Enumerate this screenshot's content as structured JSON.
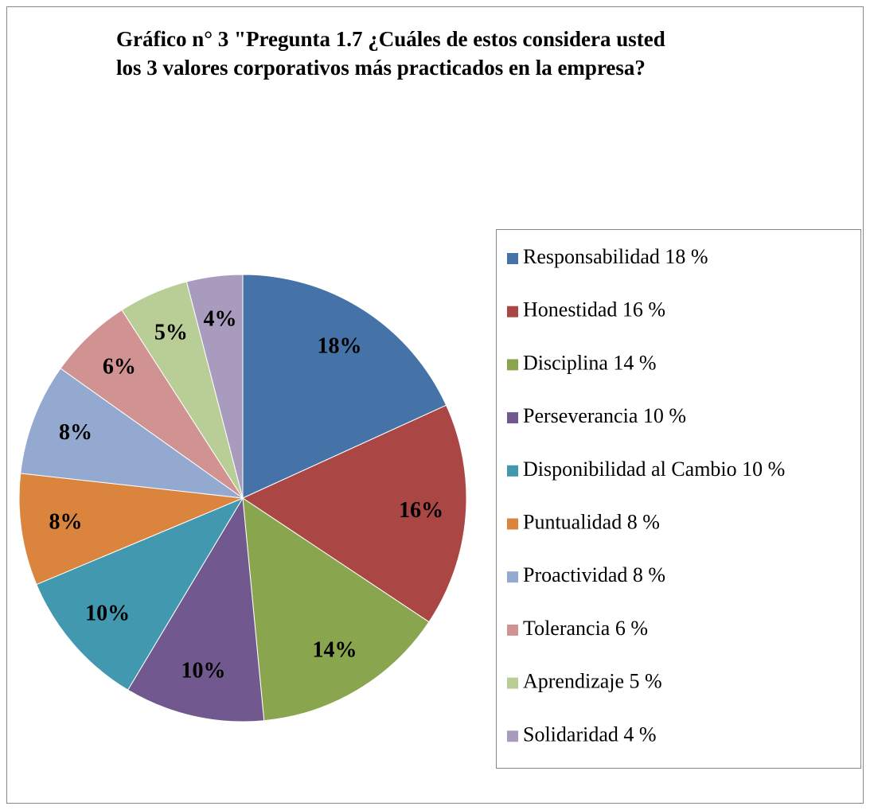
{
  "chart_data": {
    "type": "pie",
    "title": [
      "Gráfico n° 3 \"Pregunta  1.7 ¿Cuáles de estos considera usted",
      "los 3 valores corporativos más practicados en la empresa?"
    ],
    "categories": [
      "Responsabilidad 18 %",
      "Honestidad 16 %",
      "Disciplina 14 %",
      "Perseverancia 10 %",
      "Disponibilidad al Cambio 10 %",
      "Puntualidad 8 %",
      "Proactividad 8 %",
      "Tolerancia 6 %",
      "Aprendizaje 5 %",
      "Solidaridad 4 %"
    ],
    "values": [
      18,
      16,
      14,
      10,
      10,
      8,
      8,
      6,
      5,
      4
    ],
    "value_labels": [
      "18%",
      "16%",
      "14%",
      "10%",
      "10%",
      "8%",
      "8%",
      "6%",
      "5%",
      "4%"
    ],
    "colors": [
      "#4572a7",
      "#aa4643",
      "#89a54e",
      "#71588f",
      "#4198af",
      "#db843d",
      "#93a9cf",
      "#d19392",
      "#b9cd96",
      "#a99bbd"
    ],
    "legend": "right"
  }
}
